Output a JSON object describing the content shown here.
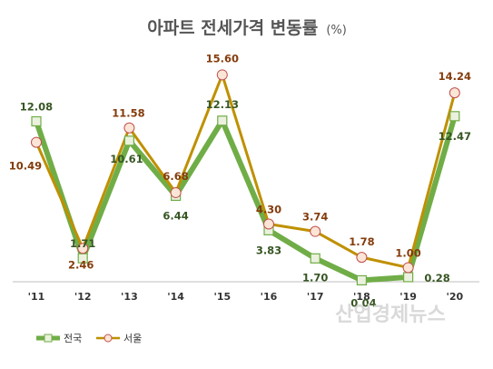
{
  "chart_data": {
    "type": "line",
    "title": "아파트 전세가격 변동률",
    "title_unit": "(%)",
    "categories": [
      "'11",
      "'12",
      "'13",
      "'14",
      "'15",
      "'16",
      "'17",
      "'18",
      "'19",
      "'20"
    ],
    "series": [
      {
        "name": "전국",
        "values": [
          12.08,
          1.71,
          10.61,
          6.44,
          12.13,
          3.83,
          1.7,
          0.04,
          0.28,
          12.47
        ],
        "labels": [
          "12.08",
          "1.71",
          "10.61",
          "6.44",
          "12.13",
          "3.83",
          "1.70",
          "0.04",
          "0.28",
          "12.47"
        ],
        "color": "#70ad47",
        "label_color": "#375623",
        "marker": "square"
      },
      {
        "name": "서울",
        "values": [
          10.49,
          2.46,
          11.58,
          6.68,
          15.6,
          4.3,
          3.74,
          1.78,
          1.0,
          14.24
        ],
        "labels": [
          "10.49",
          "2.46",
          "11.58",
          "6.68",
          "15.60",
          "4.30",
          "3.74",
          "1.78",
          "1.00",
          "14.24"
        ],
        "color": "#bf9000",
        "label_color": "#843c0c",
        "marker": "circle"
      }
    ],
    "ylim": [
      0,
      17
    ],
    "grid": false,
    "legend": "bottom-left",
    "watermark": "산업경제뉴스"
  }
}
